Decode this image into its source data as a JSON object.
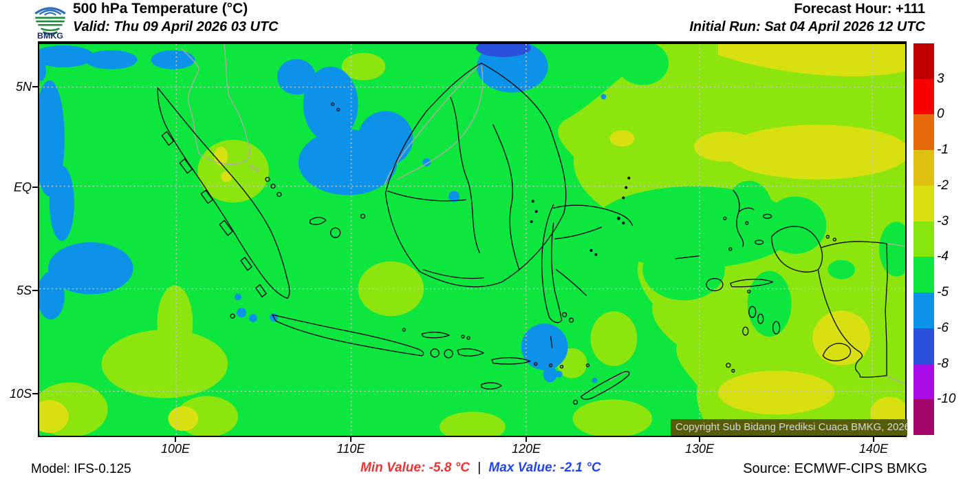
{
  "header": {
    "logo_text": "BMKG",
    "title": "500 hPa Temperature (°C)",
    "valid": "Valid: Thu 09 April 2026 03 UTC",
    "forecast_hour": "Forecast Hour: +111",
    "initial_run": "Initial Run: Sat 04 April 2026 12 UTC"
  },
  "map": {
    "lat_labels": [
      "5N",
      "EQ",
      "5S",
      "10S"
    ],
    "lon_labels": [
      "100E",
      "110E",
      "120E",
      "130E",
      "140E"
    ],
    "copyright": "Copyright Sub Bidang Prediksi Cuaca BMKG, 2026"
  },
  "colorbar": {
    "tick_labels": [
      "3",
      "0",
      "-1",
      "-2",
      "-3",
      "-4",
      "-5",
      "-6",
      "-8",
      "-10"
    ],
    "segment_colors": [
      "#c00000",
      "#fa0000",
      "#e8680c",
      "#e0c010",
      "#d8e012",
      "#86e60e",
      "#0ce63e",
      "#0c92e8",
      "#2a50dc",
      "#aa0ce8",
      "#a4066c"
    ]
  },
  "colors": {
    "green": "#0ce63e",
    "blue": "#0c92e8",
    "dark-blue": "#2a50dc",
    "yellow-green": "#8ce60e",
    "yellow": "#d8e012",
    "outline": "#000000",
    "foreign": "#b2aaa2",
    "grid": "#c9c9c9",
    "min-red": "#ee3333",
    "max-blue": "#2244ee",
    "copyright-bg": "#565c08",
    "logo-blue": "#2a6ebb",
    "logo-green": "#1e8a3c",
    "logo-navy": "#1a2a6a"
  },
  "footer": {
    "model": "Model: IFS-0.125",
    "min_value": "Min Value: -5.8 °C",
    "separator": "|",
    "max_value": "Max Value: -2.1 °C",
    "source": "Source: ECMWF-CIPS BMKG"
  }
}
